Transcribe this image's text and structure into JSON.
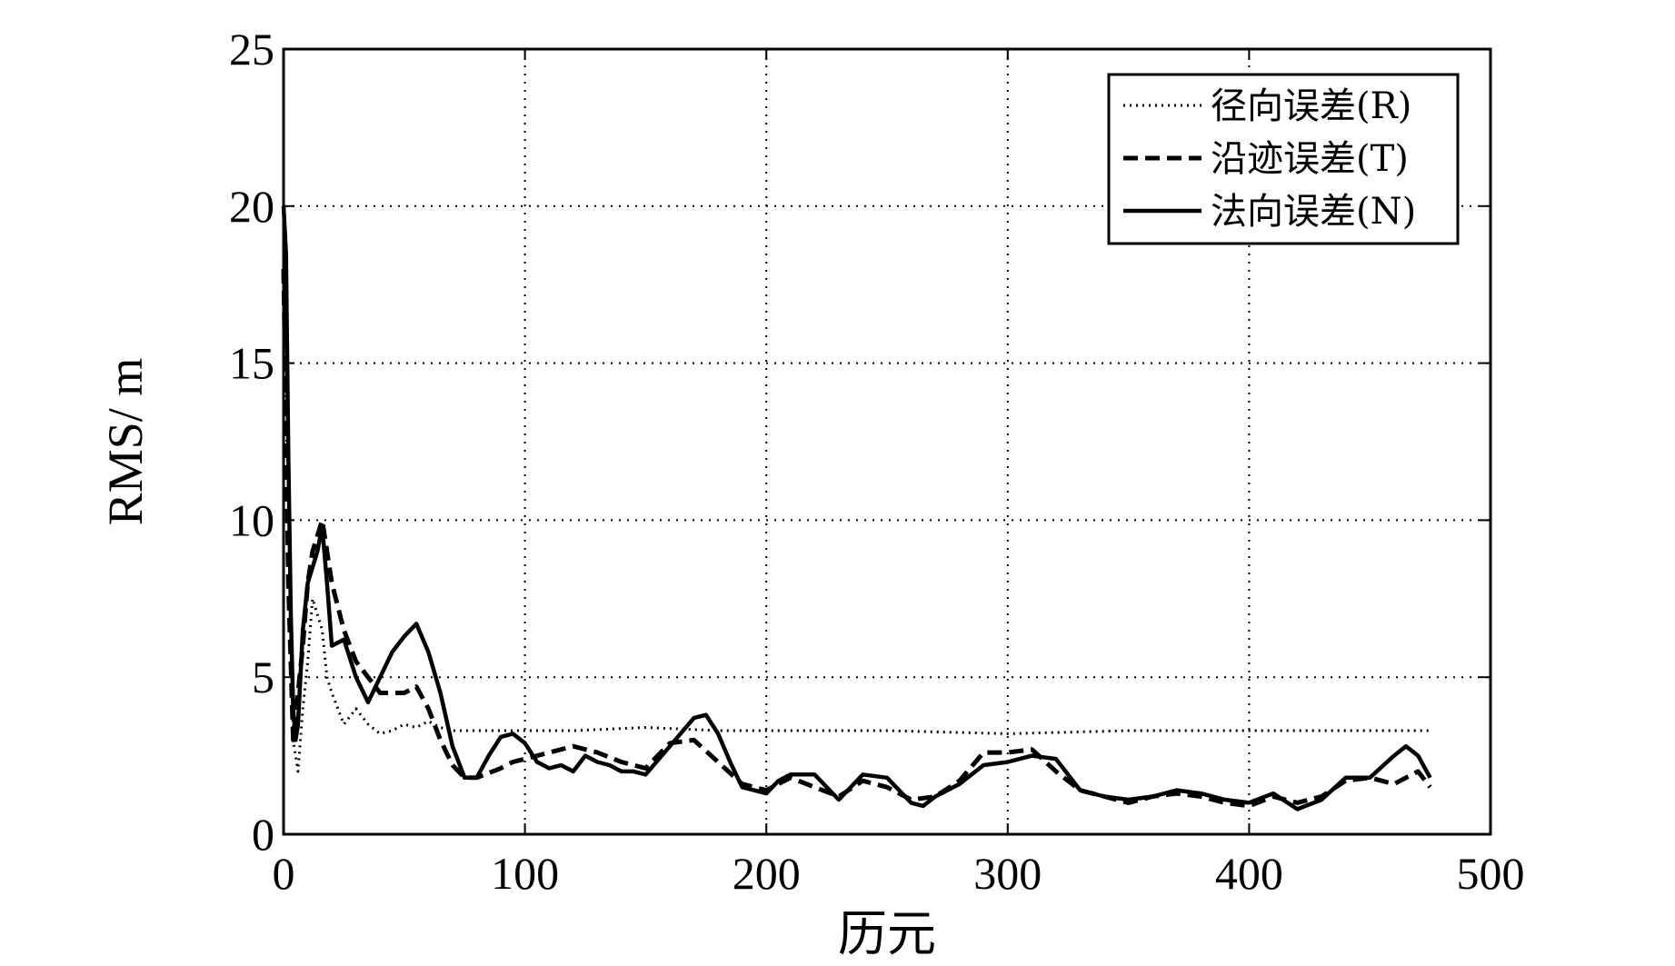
{
  "chart_data": {
    "type": "line",
    "xlabel": "历元",
    "ylabel": "RMS/ m",
    "xlim": [
      0,
      500
    ],
    "ylim": [
      0,
      25
    ],
    "xticks": [
      "0",
      "100",
      "200",
      "300",
      "400",
      "500"
    ],
    "yticks": [
      "0",
      "5",
      "10",
      "15",
      "20",
      "25"
    ],
    "grid": true,
    "legend_position": "top-right",
    "series": [
      {
        "name": "径向误差(R)",
        "style": "dotted",
        "color": "#000000",
        "x": [
          0,
          2,
          4,
          6,
          8,
          10,
          12,
          14,
          16,
          18,
          20,
          25,
          30,
          35,
          40,
          45,
          50,
          55,
          60,
          65,
          70,
          75,
          80,
          90,
          100,
          120,
          150,
          180,
          200,
          250,
          300,
          350,
          400,
          450,
          475
        ],
        "y": [
          16,
          11,
          3,
          2,
          4,
          5.5,
          7.5,
          7,
          6.5,
          5,
          4.5,
          3.5,
          4,
          3.5,
          3.2,
          3.3,
          3.5,
          3.4,
          3.6,
          3.4,
          3.3,
          3.3,
          3.3,
          3.3,
          3.3,
          3.3,
          3.4,
          3.3,
          3.3,
          3.3,
          3.2,
          3.3,
          3.3,
          3.3,
          3.3
        ]
      },
      {
        "name": "沿迹误差(T)",
        "style": "dashed",
        "color": "#000000",
        "x": [
          0,
          2,
          4,
          6,
          8,
          10,
          12,
          14,
          16,
          18,
          20,
          25,
          30,
          35,
          40,
          45,
          50,
          55,
          60,
          65,
          70,
          75,
          80,
          90,
          95,
          100,
          110,
          120,
          130,
          140,
          150,
          160,
          170,
          180,
          190,
          200,
          210,
          220,
          230,
          240,
          250,
          260,
          270,
          280,
          290,
          300,
          310,
          320,
          330,
          340,
          350,
          360,
          370,
          380,
          390,
          400,
          410,
          420,
          430,
          440,
          450,
          460,
          470,
          475
        ],
        "y": [
          18,
          8,
          3,
          4.5,
          6,
          8,
          9,
          9.5,
          10,
          9,
          8,
          6.5,
          5.5,
          5,
          4.5,
          4.5,
          4.5,
          4.7,
          4,
          3,
          2.2,
          1.8,
          1.8,
          2.1,
          2.3,
          2.4,
          2.6,
          2.8,
          2.6,
          2.3,
          2.1,
          2.9,
          3.0,
          2.3,
          1.6,
          1.4,
          1.8,
          1.5,
          1.2,
          1.7,
          1.5,
          1.1,
          1.2,
          1.7,
          2.6,
          2.6,
          2.7,
          2.0,
          1.4,
          1.2,
          1.0,
          1.2,
          1.3,
          1.2,
          1.0,
          0.9,
          1.2,
          1.0,
          1.2,
          1.7,
          1.8,
          1.6,
          2.0,
          1.5
        ]
      },
      {
        "name": "法向误差(N)",
        "style": "solid",
        "color": "#000000",
        "x": [
          0,
          1,
          2,
          3,
          4,
          5,
          6,
          8,
          10,
          12,
          14,
          16,
          18,
          20,
          25,
          30,
          35,
          40,
          45,
          50,
          55,
          60,
          65,
          70,
          75,
          80,
          85,
          90,
          95,
          100,
          105,
          110,
          115,
          120,
          125,
          130,
          135,
          140,
          145,
          150,
          160,
          170,
          175,
          180,
          185,
          190,
          200,
          205,
          210,
          220,
          230,
          240,
          250,
          260,
          265,
          270,
          280,
          290,
          300,
          310,
          320,
          330,
          340,
          350,
          360,
          370,
          380,
          390,
          400,
          410,
          420,
          430,
          440,
          450,
          460,
          465,
          470,
          475
        ],
        "y": [
          20,
          18.5,
          12,
          7,
          4,
          3,
          3.5,
          6.5,
          8,
          8.5,
          9,
          9.8,
          8,
          6,
          6.2,
          5,
          4.2,
          5,
          5.8,
          6.3,
          6.7,
          5.8,
          4.5,
          2.8,
          1.8,
          1.8,
          2.5,
          3.1,
          3.2,
          2.9,
          2.3,
          2.1,
          2.2,
          2.0,
          2.5,
          2.3,
          2.2,
          2.0,
          2.0,
          1.9,
          2.8,
          3.7,
          3.8,
          3.2,
          2.3,
          1.5,
          1.3,
          1.7,
          1.9,
          1.9,
          1.1,
          1.9,
          1.8,
          1.0,
          0.9,
          1.2,
          1.6,
          2.2,
          2.3,
          2.5,
          2.4,
          1.4,
          1.2,
          1.1,
          1.2,
          1.4,
          1.3,
          1.1,
          1.0,
          1.3,
          0.8,
          1.1,
          1.8,
          1.8,
          2.5,
          2.8,
          2.5,
          1.8
        ]
      }
    ]
  }
}
